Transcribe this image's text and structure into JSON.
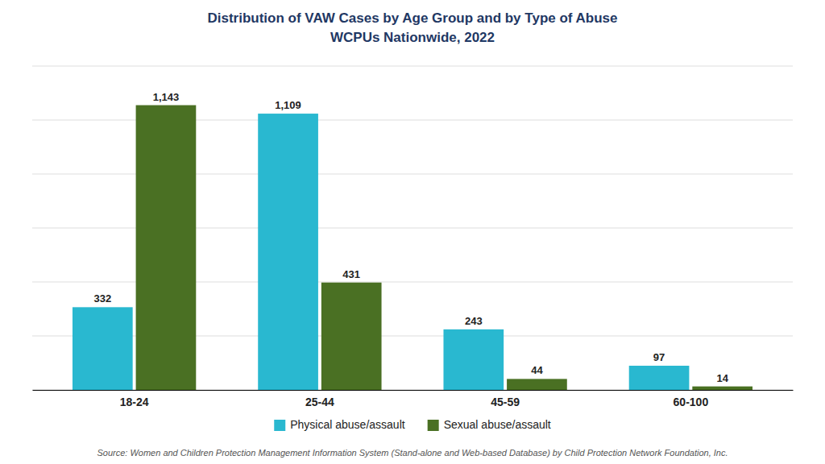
{
  "chart_data": {
    "type": "bar",
    "title": "Distribution of VAW Cases by Age Group and by Type of Abuse",
    "subtitle": "WCPUs Nationwide, 2022",
    "source": "Source: Women and Children Protection Management Information System (Stand-alone and Web-based Database) by Child Protection Network Foundation, Inc.",
    "categories": [
      "18-24",
      "25-44",
      "45-59",
      "60-100"
    ],
    "series": [
      {
        "name": "Physical abuse/assault",
        "color": "#29B8D0",
        "values": [
          332,
          1109,
          243,
          97
        ],
        "value_labels": [
          "332",
          "1,109",
          "243",
          "97"
        ]
      },
      {
        "name": "Sexual abuse/assault",
        "color": "#4A7023",
        "values": [
          1143,
          431,
          44,
          14
        ],
        "value_labels": [
          "1,143",
          "431",
          "44",
          "14"
        ]
      }
    ],
    "ylim": [
      0,
      1300
    ],
    "yticks": [
      0,
      216.66666666666666,
      433.3333333333333,
      650,
      866.6666666666666,
      1083.3333333333333,
      1300
    ],
    "grid": true,
    "legend": "bottom",
    "data_labels": true,
    "tick_labels": "x"
  }
}
